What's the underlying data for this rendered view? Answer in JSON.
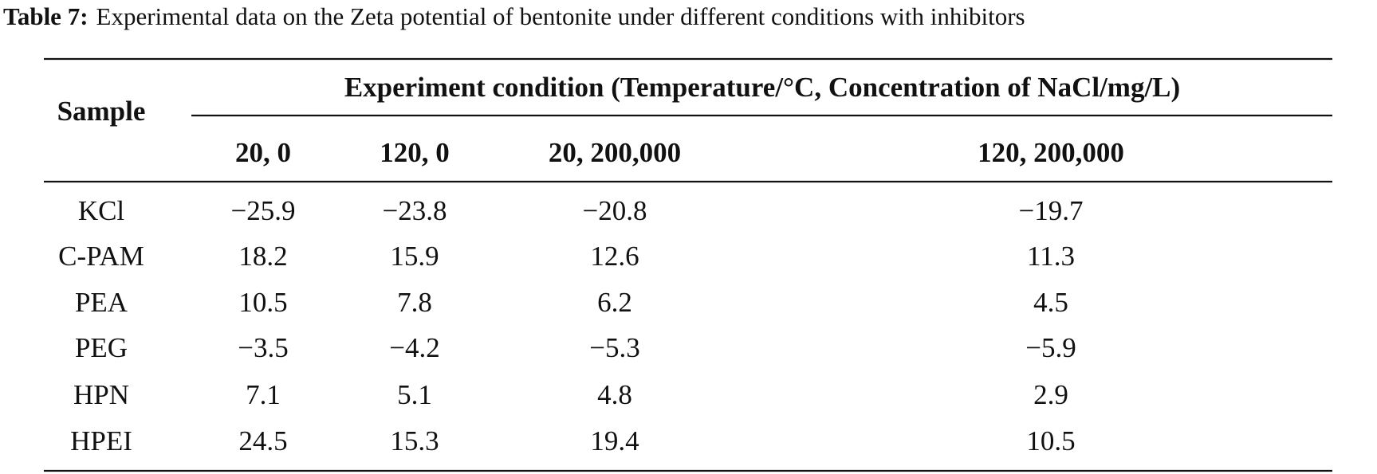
{
  "caption": {
    "label": "Table 7:",
    "text": "Experimental data on the Zeta potential of bentonite under different conditions with inhibitors"
  },
  "table": {
    "row_header": "Sample",
    "group_header": "Experiment condition (Temperature/°C, Concentration of NaCl/mg/L)",
    "columns": [
      "20, 0",
      "120, 0",
      "20, 200,000",
      "120, 200,000"
    ],
    "rows": [
      [
        "KCl",
        "−25.9",
        "−23.8",
        "−20.8",
        "−19.7"
      ],
      [
        "C-PAM",
        "18.2",
        "15.9",
        "12.6",
        "11.3"
      ],
      [
        "PEA",
        "10.5",
        "7.8",
        "6.2",
        "4.5"
      ],
      [
        "PEG",
        "−3.5",
        "−4.2",
        "−5.3",
        "−5.9"
      ],
      [
        "HPN",
        "7.1",
        "5.1",
        "4.8",
        "2.9"
      ],
      [
        "HPEI",
        "24.5",
        "15.3",
        "19.4",
        "10.5"
      ]
    ]
  }
}
